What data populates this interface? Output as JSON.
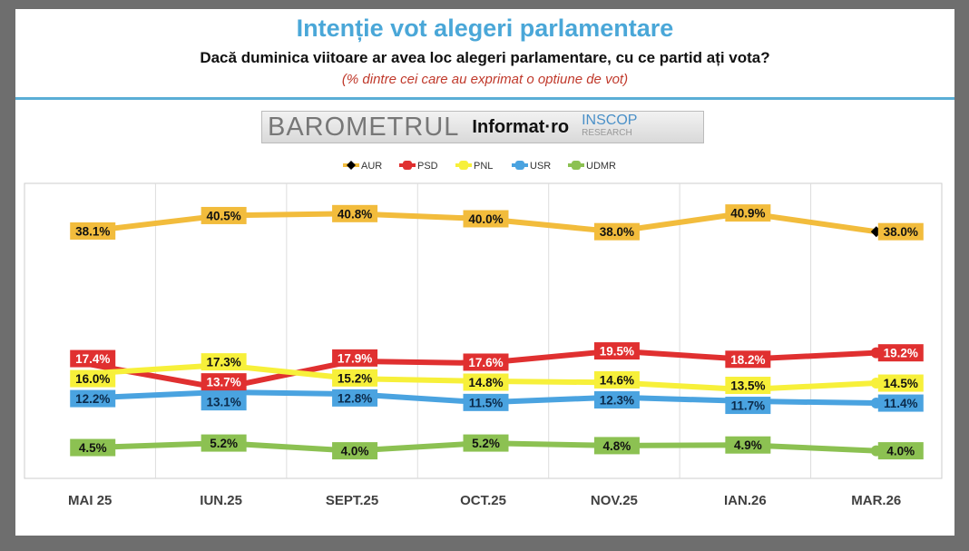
{
  "title": "Intenție vot alegeri parlamentare",
  "subtitle": "Dacă duminica viitoare ar avea loc alegeri parlamentare, cu ce partid ați vota?",
  "note": "(% dintre cei care au exprimat o optiune de vot)",
  "logo": {
    "barometrul": "BAROMETRUL",
    "informat": "Informat·ro",
    "inscop": "INSCOP",
    "research": "RESEARCH"
  },
  "chart_data": {
    "type": "line",
    "categories": [
      "MAI 25",
      "IUN.25",
      "SEPT.25",
      "OCT.25",
      "NOV.25",
      "IAN.26",
      "MAR.26"
    ],
    "legend_position": "top",
    "grid": "vertical",
    "series": [
      {
        "name": "AUR",
        "color": "#f2bc3c",
        "label_color": "#f2bc3c",
        "values": [
          38.1,
          40.5,
          40.8,
          40.0,
          38.0,
          40.9,
          38.0
        ]
      },
      {
        "name": "PSD",
        "color": "#e03030",
        "label_color": "#e03030",
        "values": [
          17.4,
          13.7,
          17.9,
          17.6,
          19.5,
          18.2,
          19.2
        ]
      },
      {
        "name": "PNL",
        "color": "#f7f03a",
        "label_color": "#f7f03a",
        "values": [
          16.0,
          17.3,
          15.2,
          14.8,
          14.6,
          13.5,
          14.5
        ]
      },
      {
        "name": "USR",
        "color": "#4aa3e0",
        "label_color": "#4aa3e0",
        "values": [
          12.2,
          13.1,
          12.8,
          11.5,
          12.3,
          11.7,
          11.4
        ]
      },
      {
        "name": "UDMR",
        "color": "#8cc152",
        "label_color": "#8cc152",
        "values": [
          4.5,
          5.2,
          4.0,
          5.2,
          4.8,
          4.9,
          4.0
        ]
      }
    ]
  }
}
